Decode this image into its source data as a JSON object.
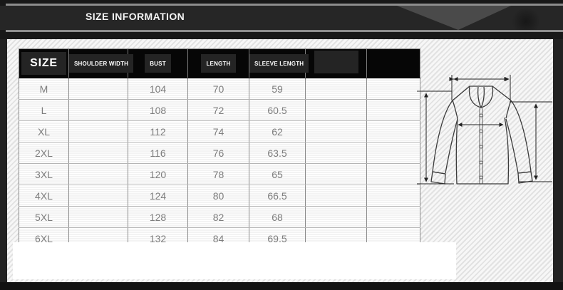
{
  "banner": {
    "title": "SIZE INFORMATION"
  },
  "size_table": {
    "columns": [
      {
        "label": "SIZE",
        "box": true,
        "primary": true
      },
      {
        "label": "SHOULDER WIDTH",
        "box": true,
        "primary": false
      },
      {
        "label": "BUST",
        "box": true,
        "primary": false
      },
      {
        "label": "LENGTH",
        "box": true,
        "primary": false
      },
      {
        "label": "SLEEVE LENGTH",
        "box": true,
        "primary": false
      },
      {
        "label": "",
        "box": true,
        "primary": false
      },
      {
        "label": "",
        "box": false,
        "primary": false
      }
    ],
    "rows": [
      [
        "M",
        "",
        "104",
        "70",
        "59",
        "",
        ""
      ],
      [
        "L",
        "",
        "108",
        "72",
        "60.5",
        "",
        ""
      ],
      [
        "XL",
        "",
        "112",
        "74",
        "62",
        "",
        ""
      ],
      [
        "2XL",
        "",
        "116",
        "76",
        "63.5",
        "",
        ""
      ],
      [
        "3XL",
        "",
        "120",
        "78",
        "65",
        "",
        ""
      ],
      [
        "4XL",
        "",
        "124",
        "80",
        "66.5",
        "",
        ""
      ],
      [
        "5XL",
        "",
        "128",
        "82",
        "68",
        "",
        ""
      ],
      [
        "6XL",
        "",
        "132",
        "84",
        "69.5",
        "",
        ""
      ]
    ]
  },
  "diagram": {
    "name": "shirt-measurement-diagram"
  },
  "colors": {
    "banner_bar": "#262626",
    "banner_line": "#8d8d8d",
    "banner_triangle": "#4a4a4a",
    "panel_bg": "#ededed",
    "table_header_bg": "#060606",
    "header_box_bg": "#242424",
    "cell_text": "#7d7d7d"
  }
}
